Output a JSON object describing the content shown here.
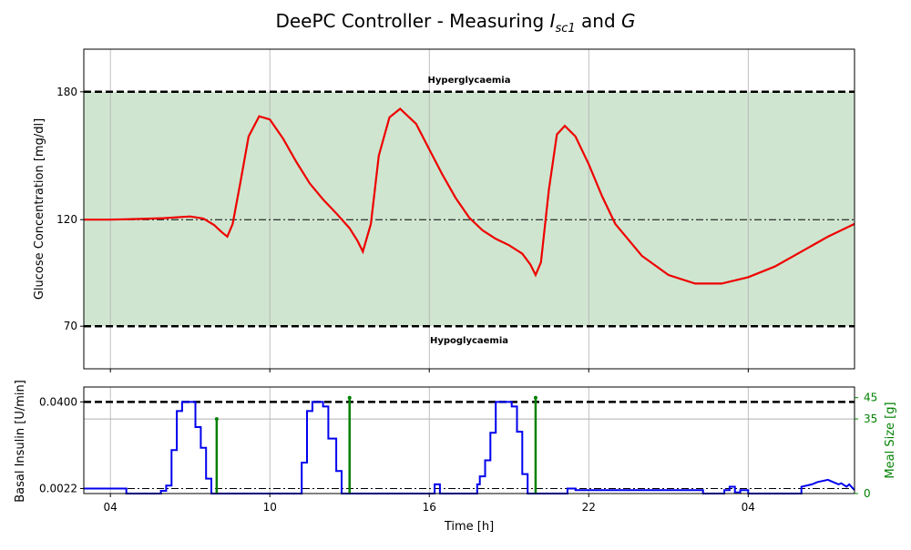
{
  "title": "DeePC Controller - Measuring",
  "title_sub1": "I",
  "title_sub1_index": "sc1",
  "title_and": "and",
  "title_sub2": "G",
  "chart_data": [
    {
      "type": "line",
      "ylabel": "Glucose Concentration [mg/dl]",
      "ylim": [
        50,
        200
      ],
      "yticks": [
        "70",
        "120",
        "180"
      ],
      "ytick_values": [
        70,
        120,
        180
      ],
      "xlim": [
        3.0,
        32.0
      ],
      "xticks": [
        4,
        10,
        16,
        22,
        28
      ],
      "grid": true,
      "target_band": [
        70,
        180
      ],
      "band_color": "#cfe5cf",
      "setpoint": 120,
      "annotations": {
        "upper": "Hyperglycaemia",
        "lower": "Hypoglycaemia"
      },
      "series": [
        {
          "color": "#ee0000",
          "x": [
            3.0,
            4.0,
            5.0,
            6.0,
            7.0,
            7.5,
            7.9,
            8.2,
            8.4,
            8.6,
            8.9,
            9.2,
            9.6,
            10.0,
            10.5,
            11.0,
            11.5,
            12.0,
            12.5,
            13.0,
            13.3,
            13.5,
            13.8,
            14.1,
            14.5,
            14.9,
            15.5,
            16.0,
            16.5,
            17.0,
            17.5,
            18.0,
            18.5,
            19.0,
            19.5,
            19.8,
            20.0,
            20.2,
            20.5,
            20.8,
            21.1,
            21.5,
            22.0,
            22.5,
            23.0,
            24.0,
            25.0,
            26.0,
            27.0,
            28.0,
            29.0,
            30.0,
            31.0,
            32.0
          ],
          "y": [
            120,
            120,
            120.3,
            120.7,
            121.5,
            120.5,
            117.5,
            114,
            112,
            118,
            138,
            159,
            168.5,
            167,
            158,
            147,
            137,
            129.5,
            123,
            116,
            110,
            105,
            118,
            150,
            168,
            172,
            165,
            153,
            141,
            130,
            121,
            115,
            111,
            108,
            104,
            99,
            94,
            100,
            134,
            160,
            164,
            159,
            146,
            131,
            118,
            103,
            94,
            90,
            90,
            93,
            98,
            105,
            112,
            118
          ]
        }
      ]
    },
    {
      "type": "line",
      "ylabel": "Basal Insulin [U/min]",
      "ylim": [
        0,
        0.0465
      ],
      "yticks": [
        "0.0022",
        "0.0400"
      ],
      "ytick_values": [
        0.0022,
        0.04
      ],
      "y2label": "Meal Size [g]",
      "y2lim": [
        0,
        50
      ],
      "y2ticks": [
        "0",
        "35",
        "45"
      ],
      "y2tick_values": [
        0,
        35,
        45
      ],
      "xlabel": "Time [h]",
      "xlim": [
        3.0,
        32.0
      ],
      "xticks": [
        "04",
        "10",
        "16",
        "22",
        "04"
      ],
      "xtick_values": [
        4,
        10,
        16,
        22,
        28
      ],
      "insulin_max": 0.04,
      "insulin_basal": 0.0022,
      "meal_ref": 35,
      "series": [
        {
          "color": "#0000ee",
          "x": [
            3.0,
            4.6,
            4.6,
            5.9,
            5.9,
            6.1,
            6.1,
            6.3,
            6.3,
            6.5,
            6.5,
            6.7,
            6.7,
            7.2,
            7.2,
            7.4,
            7.4,
            7.6,
            7.6,
            7.8,
            7.8,
            11.2,
            11.2,
            11.4,
            11.4,
            11.6,
            11.6,
            12.0,
            12.0,
            12.2,
            12.2,
            12.5,
            12.5,
            12.7,
            12.7,
            16.2,
            16.2,
            16.4,
            16.4,
            17.8,
            17.8,
            17.9,
            17.9,
            18.1,
            18.1,
            18.3,
            18.3,
            18.5,
            18.5,
            19.1,
            19.1,
            19.3,
            19.3,
            19.5,
            19.5,
            19.7,
            19.7,
            21.2,
            21.2,
            21.5,
            21.5,
            26.3,
            26.3,
            27.1,
            27.1,
            27.3,
            27.3,
            27.5,
            27.5,
            27.7,
            27.7,
            28.0,
            28.0,
            30.0,
            30.0,
            30.4,
            30.6,
            31.0,
            31.1,
            31.4,
            31.5,
            31.7,
            31.8,
            32.0
          ],
          "y": [
            0.0022,
            0.0022,
            0,
            0,
            0.0012,
            0.0012,
            0.0035,
            0.0035,
            0.019,
            0.019,
            0.036,
            0.036,
            0.04,
            0.04,
            0.029,
            0.029,
            0.02,
            0.02,
            0.0065,
            0.0065,
            0,
            0,
            0.0135,
            0.0135,
            0.036,
            0.036,
            0.04,
            0.04,
            0.038,
            0.038,
            0.024,
            0.024,
            0.0098,
            0.0098,
            0,
            0,
            0.004,
            0.004,
            0,
            0,
            0.004,
            0.004,
            0.0075,
            0.0075,
            0.0145,
            0.0145,
            0.0265,
            0.0265,
            0.04,
            0.04,
            0.038,
            0.038,
            0.027,
            0.027,
            0.0085,
            0.0085,
            0,
            0,
            0.0022,
            0.0022,
            0.0015,
            0.0015,
            0,
            0,
            0.0015,
            0.0015,
            0.003,
            0.003,
            0.0005,
            0.0005,
            0.0015,
            0.0015,
            0,
            0,
            0.003,
            0.004,
            0.005,
            0.006,
            0.0055,
            0.004,
            0.0045,
            0.003,
            0.004,
            0.0015
          ]
        },
        {
          "type": "stem",
          "axis": "y2",
          "color": "#008000",
          "x": [
            8.0,
            13.0,
            20.0
          ],
          "y": [
            35,
            45,
            45
          ]
        }
      ]
    }
  ]
}
